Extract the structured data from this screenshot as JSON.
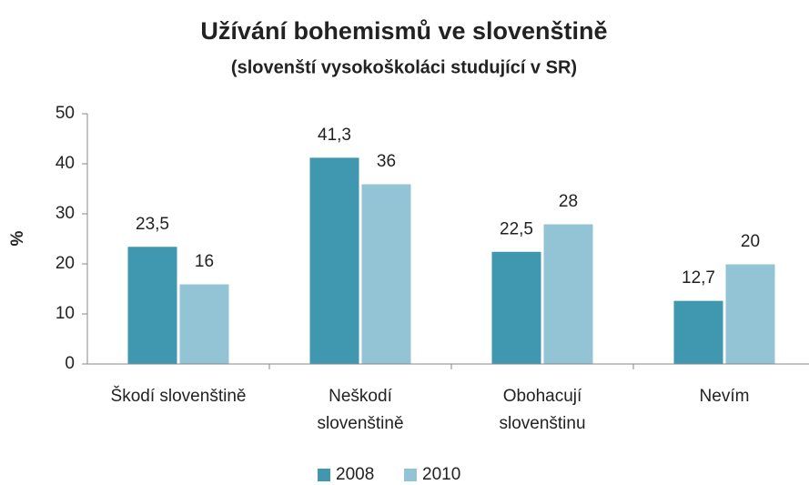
{
  "chart_data": {
    "type": "bar",
    "title": "Užívání bohemismů ve slovenštině",
    "subtitle": "(slovenští vysokoškoláci studující v SR)",
    "y_label": "%",
    "categories": [
      "Škodí slovenštině",
      "Neškodí slovenštině",
      "Obohacují slovenštinu",
      "Nevím"
    ],
    "series": [
      {
        "name": "2008",
        "color": "#3f97b0",
        "values": [
          23.5,
          41.3,
          22.5,
          12.7
        ],
        "value_labels": [
          "23,5",
          "41,3",
          "22,5",
          "12,7"
        ]
      },
      {
        "name": "2010",
        "color": "#93c4d6",
        "values": [
          16,
          36,
          28,
          20
        ],
        "value_labels": [
          "16",
          "36",
          "28",
          "20"
        ]
      }
    ],
    "ylim": [
      0,
      50
    ],
    "yticks": [
      0,
      10,
      20,
      30,
      40,
      50
    ],
    "grid": false,
    "legend": "bottom"
  }
}
